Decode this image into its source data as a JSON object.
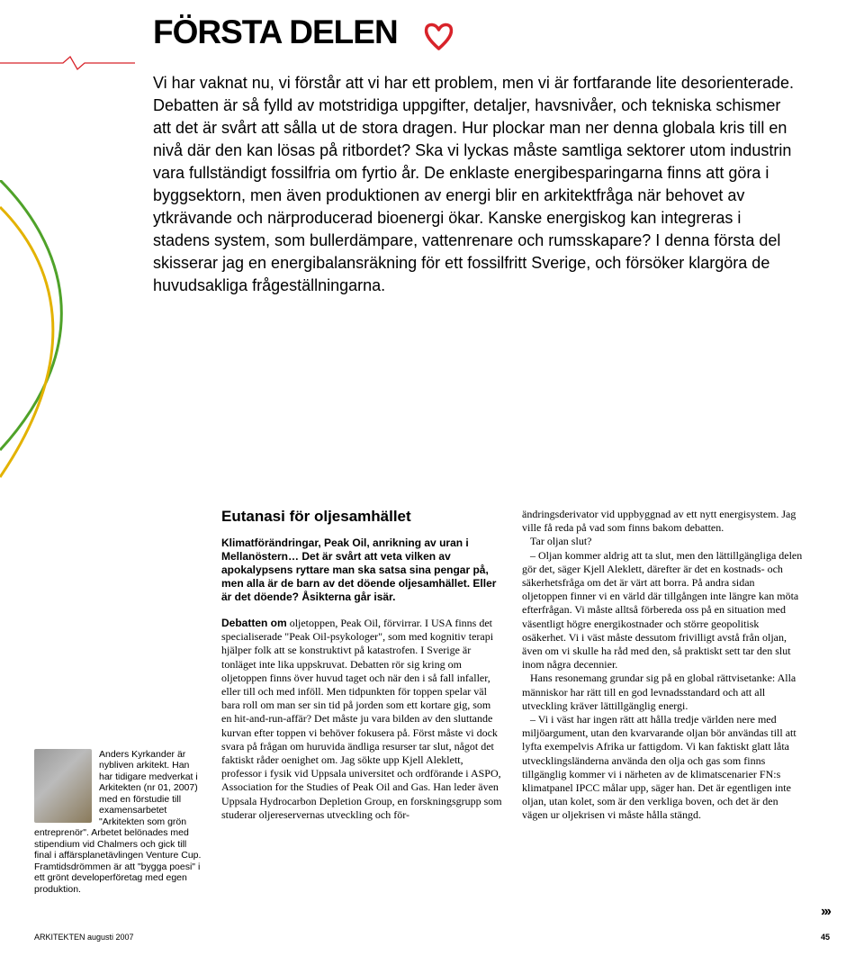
{
  "title": {
    "text": "FÖRSTA DELEN",
    "fontSize": 37,
    "color": "#000000"
  },
  "heart": {
    "stroke": "#d8232a",
    "strokeWidth": 3.5
  },
  "decor": {
    "redLine": "#d8232a",
    "greenCurve": "#4fa229",
    "yellowCurve": "#e3b200"
  },
  "intro": {
    "fontSize": 18,
    "lineHeight": 25,
    "text": "Vi har vaknat nu, vi förstår att vi har ett problem, men vi är fortfarande lite desorienterade. Debatten är så fylld av motstridiga uppgifter, detaljer, havsnivåer, och tekniska schismer att det är svårt att sålla ut de stora dragen. Hur plockar man ner denna globala kris till en nivå där den kan lösas på ritbordet? Ska vi lyckas måste samtliga sektorer utom industrin vara fullständigt fossilfria om fyrtio år. De enklaste energibesparingarna finns att göra i byggsektorn, men även produktionen av energi blir en arkitektfråga när behovet av ytkrävande och närproducerad bioenergi ökar. Kanske energiskog kan integreras i stadens system, som bullerdämpare, vattenrenare och rumsskapare? I denna första del skisserar jag en energibalansräkning för ett fossilfritt Sverige, och försöker klargöra de huvudsakliga frågeställningarna."
  },
  "author": {
    "fontSize": 10.5,
    "lineHeight": 12.5,
    "text": "Anders Kyrkander är nybliven arkitekt. Han har tidigare medverkat i Arkitekten (nr 01, 2007) med en förstudie till examensarbetet \"Arkitekten som grön entreprenör\". Arbetet belönades med stipendium vid Chalmers och gick till final i affärsplanetävlingen Venture Cup. Framtidsdrömmen är att \"bygga poesi\" i ett grönt developerföretag med egen produktion."
  },
  "article": {
    "subheadFontSize": 17,
    "subhead": "Eutanasi för oljesamhället",
    "ledeFontSize": 12,
    "ledeLineHeight": 15,
    "lede": "Klimatförändringar, Peak Oil, anrikning av uran i Mellanöstern… Det är svårt att veta vilken av apokalypsens ryttare man ska satsa sina pengar på, men alla är de barn av det döende oljesamhället. Eller är det döende? Åsikterna går isär.",
    "bodyFontSize": 12,
    "bodyLineHeight": 15.2,
    "runIn": "Debatten om",
    "bodyMid": " oljetoppen, Peak Oil, förvirrar. I USA finns det specialiserade \"Peak Oil-psykologer\", som med kognitiv terapi hjälper folk att se konstruktivt på katastrofen. I Sverige är tonläget inte lika uppskruvat. Debatten rör sig kring om oljetoppen finns över huvud taget och när den i så fall infaller, eller till och med inföll. Men tidpunkten för toppen spelar väl bara roll om man ser sin tid på jorden som ett kortare gig, som en hit-and-run-affär? Det måste ju vara bilden av den sluttande kurvan efter toppen vi behöver fokusera på. Först måste vi dock svara på frågan om huruvida ändliga resurser tar slut, något det faktiskt råder oenighet om. Jag sökte upp Kjell Aleklett, professor i fysik vid Uppsala universitet och ordförande i ASPO, Association for the Studies of Peak Oil and Gas. Han leder även Uppsala Hydrocarbon Depletion Group, en forskningsgrupp som studerar oljereservernas utveckling och för-",
    "bodyRight": "ändringsderivator vid uppbyggnad av ett nytt energisystem. Jag ville få reda på vad som finns bakom debatten.\n   Tar oljan slut?\n   – Oljan kommer aldrig att ta slut, men den lättillgängliga delen gör det, säger Kjell Aleklett, därefter är det en kostnads- och säkerhetsfråga om det är värt att borra. På andra sidan oljetoppen finner vi en värld där tillgången inte längre kan möta efterfrågan. Vi måste alltså förbereda oss på en situation med väsentligt högre energikostnader och större geopolitisk osäkerhet. Vi i väst måste dessutom frivilligt avstå från oljan, även om vi skulle ha råd med den, så praktiskt sett tar den slut inom några decennier.\n   Hans resonemang grundar sig på en global rättvisetanke: Alla människor har rätt till en god levnadsstandard och att all utveckling kräver lättillgänglig energi.\n   – Vi i väst har ingen rätt att hålla tredje världen nere med miljöargument, utan den kvarvarande oljan bör användas till att lyfta exempelvis Afrika ur fattigdom. Vi kan faktiskt glatt låta utvecklingsländerna använda den olja och gas som finns tillgänglig kommer vi i närheten av de klimatscenarier FN:s klimatpanel IPCC målar upp, säger han. Det är egentligen inte oljan, utan kolet, som är den verkliga boven, och det är den vägen ur oljekrisen vi måste hålla stängd."
  },
  "footer": {
    "left": "ARKITEKTEN augusti 2007",
    "pageNum": "45",
    "fontSize": 9,
    "continueGlyph": "›››"
  }
}
